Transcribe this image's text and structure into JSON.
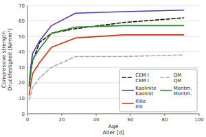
{
  "chart_data": {
    "type": "line",
    "x_label": [
      "Age",
      "Alter [d]"
    ],
    "y_label": [
      "Compressive strength",
      "Druckfestigkeit [N/mm²]"
    ],
    "x": [
      1,
      2,
      3,
      7,
      14,
      28,
      56,
      91
    ],
    "series": [
      {
        "name": [
          "CEM I",
          "CEM I"
        ],
        "color": "#111111",
        "line_style": "dashed",
        "values": [
          18,
          28,
          34,
          46,
          52,
          55,
          59,
          62
        ]
      },
      {
        "name": [
          "QM",
          "QM"
        ],
        "color": "#aaaaaa",
        "line_style": "dashed",
        "values": [
          9,
          13,
          17,
          23,
          30,
          37,
          37,
          38
        ]
      },
      {
        "name": [
          "Kaolinite",
          "Kaolinit"
        ],
        "color": "#5533bb",
        "line_style": "solid",
        "values": [
          20,
          31,
          39,
          47,
          57,
          65,
          66,
          67
        ]
      },
      {
        "name": [
          "Montm.",
          "Montm."
        ],
        "color": "#228B22",
        "line_style": "solid",
        "values": [
          18,
          28,
          35,
          42,
          52,
          56,
          57,
          57
        ]
      },
      {
        "name": [
          "Illite",
          "Illit"
        ],
        "color": "#cc3300",
        "line_style": "solid",
        "values": [
          12,
          20,
          26,
          33,
          43,
          49,
          51,
          51
        ]
      }
    ],
    "xlim": [
      0,
      100
    ],
    "ylim": [
      0,
      70
    ],
    "xticks": [
      0,
      20,
      40,
      60,
      80,
      100
    ],
    "yticks": [
      0,
      10,
      20,
      30,
      40,
      50,
      60,
      70
    ],
    "grid": "y",
    "legend": "lower right"
  }
}
